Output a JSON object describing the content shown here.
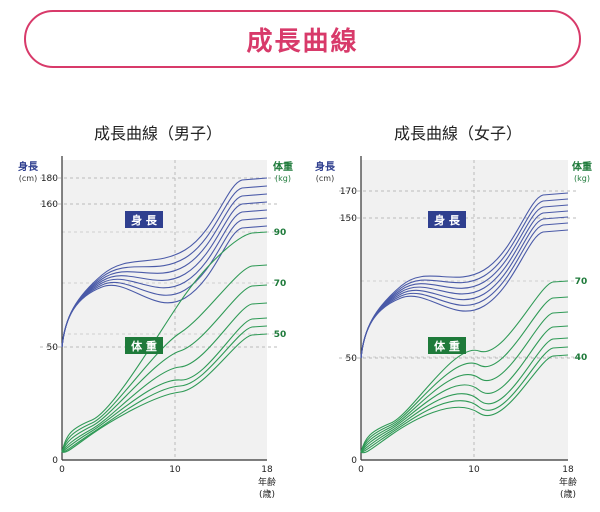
{
  "banner": {
    "title": "成長曲線"
  },
  "colors": {
    "banner": "#d83a6a",
    "height_lines": "#4a5aa8",
    "height_badge": "#2f3f8f",
    "weight_lines": "#2f9a56",
    "weight_badge": "#1e7a3a",
    "plot_bg": "#f1f1f1"
  },
  "chart_data": [
    {
      "type": "line",
      "title": "成長曲線（男子）",
      "left_axis_label": [
        "身長",
        "(cm)"
      ],
      "right_axis_label": [
        "体重",
        "(kg)"
      ],
      "x_axis_label": [
        "年齢",
        "(歳)"
      ],
      "x_ticks": [
        "0",
        "10",
        "18"
      ],
      "left_ticks": [
        "0",
        "50",
        "160",
        "180"
      ],
      "right_ticks": [
        "50",
        "70",
        "90"
      ],
      "height_badge": "身 長",
      "weight_badge": "体 重",
      "xlim": [
        0,
        18
      ],
      "height_ylim": [
        0,
        180
      ],
      "grid": "dashed at x=10 and reference values",
      "height_percentile_curves_end": [
        181,
        178,
        175,
        172,
        169,
        166,
        163
      ],
      "weight_percentile_curves_end": [
        88,
        75,
        69,
        64,
        57,
        53,
        50
      ]
    },
    {
      "type": "line",
      "title": "成長曲線（女子）",
      "left_axis_label": [
        "身長",
        "(cm)"
      ],
      "right_axis_label": [
        "体重",
        "(kg)"
      ],
      "x_axis_label": [
        "年齢",
        "(歳)"
      ],
      "x_ticks": [
        "0",
        "10",
        "18"
      ],
      "left_ticks": [
        "0",
        "50",
        "150",
        "170"
      ],
      "right_ticks": [
        "40",
        "70"
      ],
      "height_badge": "身 長",
      "weight_badge": "体 重",
      "xlim": [
        0,
        18
      ],
      "height_ylim": [
        0,
        170
      ],
      "grid": "dashed at x=10 and reference values",
      "height_percentile_curves_end": [
        170,
        167,
        164,
        161,
        158,
        155,
        152
      ],
      "weight_percentile_curves_end": [
        70,
        62,
        55,
        51,
        47,
        43,
        40
      ]
    }
  ]
}
